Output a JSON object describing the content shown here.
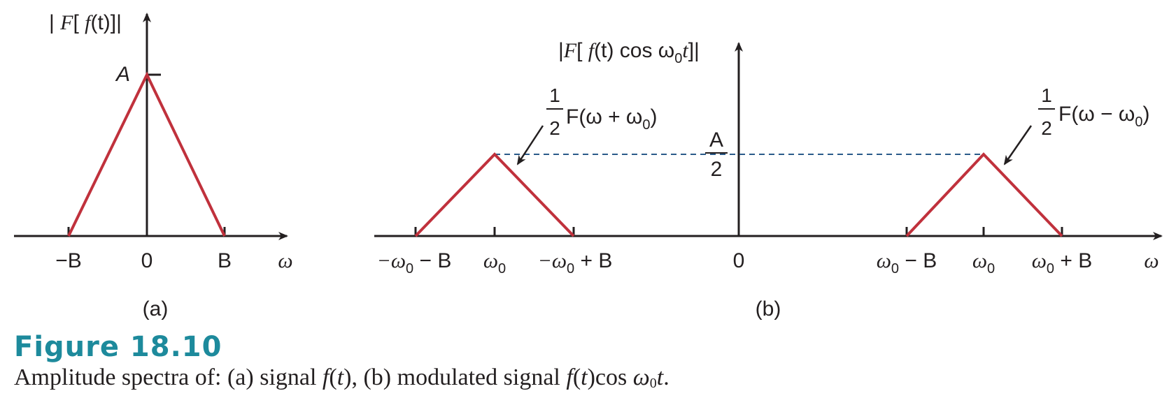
{
  "colors": {
    "axis": "#231f20",
    "spectrum": "#c0313c",
    "dashed": "#2a5a8a",
    "caption_accent": "#1d8a9c"
  },
  "panel_a": {
    "y_label": {
      "pre": "| ",
      "F": "F",
      "mid": "[ ",
      "f": "f",
      "post": "(t)]|"
    },
    "peak_label": "A",
    "tick_labels": {
      "neg_b": "−B",
      "zero": "0",
      "pos_b": "B"
    },
    "x_label": "ω",
    "sublabel": "(a)"
  },
  "panel_b": {
    "y_label": {
      "pre": "|",
      "F": "F",
      "mid": "[ ",
      "f": "f",
      "rest": "(t) cos ω",
      "sub": "0",
      "t": "t",
      "post": "]|"
    },
    "peak_label": {
      "num": "A",
      "den": "2"
    },
    "left_annotation": {
      "num": "1",
      "den": "2",
      "text": "F(ω + ω",
      "sub": "0",
      "close": ")"
    },
    "right_annotation": {
      "num": "1",
      "den": "2",
      "text": "F(ω − ω",
      "sub": "0",
      "close": ")"
    },
    "tick_labels": {
      "neg_w0_minus_b": {
        "a": "−ω",
        "sub": "0",
        "b": " − B"
      },
      "w0_left": {
        "a": "ω",
        "sub": "0"
      },
      "neg_w0_plus_b": {
        "a": "−ω",
        "sub": "0",
        "b": " + B"
      },
      "zero": "0",
      "w0_minus_b": {
        "a": "ω",
        "sub": "0",
        "b": " − B"
      },
      "w0_right": {
        "a": "ω",
        "sub": "0"
      },
      "w0_plus_b": {
        "a": "ω",
        "sub": "0",
        "b": " + B"
      }
    },
    "x_label": "ω",
    "sublabel": "(b)"
  },
  "caption": {
    "title": "Figure 18.10",
    "text_1": "Amplitude spectra of: (a) signal ",
    "f1": "f",
    "t1": "(",
    "t1b": "t",
    "t1c": "), (b) modulated signal ",
    "f2": "f",
    "t2": "(",
    "t2b": "t",
    "t2c": ")cos ",
    "omega": "ω",
    "sub": "0",
    "t3": "t",
    "end": "."
  }
}
